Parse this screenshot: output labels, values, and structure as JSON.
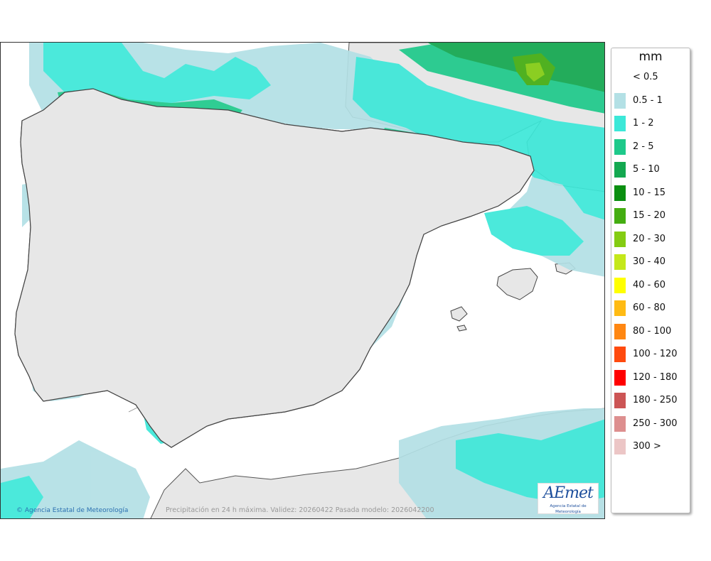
{
  "legend": {
    "unit": "mm",
    "classes": [
      {
        "label": "< 0.5",
        "color": "#ffffff"
      },
      {
        "label": "0.5 - 1",
        "color": "#b3e0e5"
      },
      {
        "label": "1 - 2",
        "color": "#3ce8d8"
      },
      {
        "label": "2 - 5",
        "color": "#1ec98a"
      },
      {
        "label": "5 - 10",
        "color": "#13a850"
      },
      {
        "label": "10 - 15",
        "color": "#0a8f10"
      },
      {
        "label": "15 - 20",
        "color": "#44ad11"
      },
      {
        "label": "20 - 30",
        "color": "#84cc12"
      },
      {
        "label": "30 - 40",
        "color": "#c4e81a"
      },
      {
        "label": "40 - 60",
        "color": "#ffff00"
      },
      {
        "label": "60 - 80",
        "color": "#ffbb14"
      },
      {
        "label": "80 - 100",
        "color": "#ff8712"
      },
      {
        "label": "100 - 120",
        "color": "#ff4a0e"
      },
      {
        "label": "120 - 180",
        "color": "#ff0000"
      },
      {
        "label": "180 - 250",
        "color": "#cc5555"
      },
      {
        "label": "250 - 300",
        "color": "#dd8f8f"
      },
      {
        "label": "300 >",
        "color": "#ecc6c6"
      }
    ]
  },
  "footer": {
    "credit": "© Agencia Estatal de Meteorología",
    "caption": "Precipitación en 24 h máxima. Validez: 20260422 Pasada modelo: 2026042200"
  },
  "logo": {
    "mark": "AEmet",
    "subtitle": "Agencia Estatal de Meteorología"
  },
  "colors": {
    "land": "#e7e7e7",
    "sea": "#ffffff",
    "region_border": "#222222",
    "province_border": "#888888"
  }
}
